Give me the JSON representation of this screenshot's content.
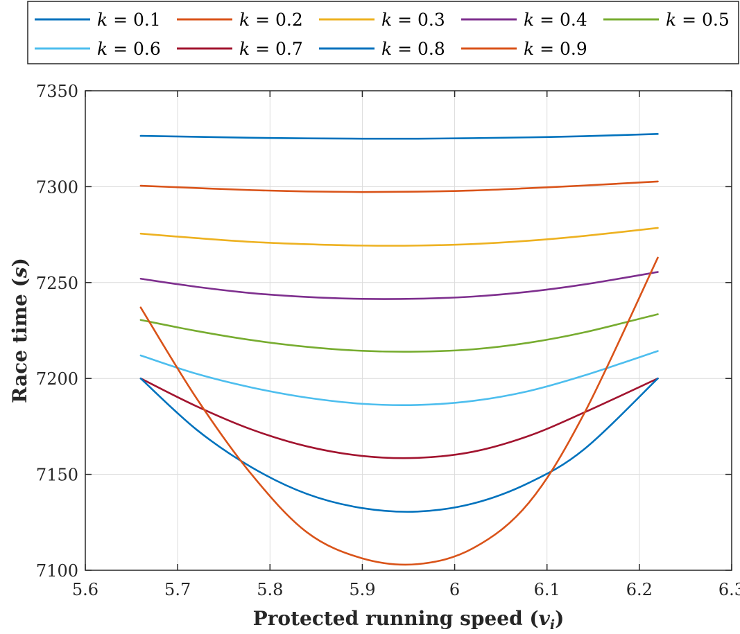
{
  "chart_data": {
    "type": "line",
    "title": "",
    "xlabel_parts": {
      "text": "Protected running speed (",
      "var": "v",
      "sub": "i",
      "close": ")"
    },
    "ylabel_parts": {
      "text": "Race time (",
      "var": "s",
      "close": ")"
    },
    "xlim": [
      5.6,
      6.3
    ],
    "ylim": [
      7100,
      7350
    ],
    "xticks": [
      5.6,
      5.7,
      5.8,
      5.9,
      6,
      6.1,
      6.2,
      6.3
    ],
    "xtick_labels": [
      "5.6",
      "5.7",
      "5.8",
      "5.9",
      "6",
      "6.1",
      "6.2",
      "6.3"
    ],
    "yticks": [
      7100,
      7150,
      7200,
      7250,
      7300,
      7350
    ],
    "ytick_labels": [
      "7100",
      "7150",
      "7200",
      "7250",
      "7300",
      "7350"
    ],
    "grid": true,
    "legend_position": "top",
    "x": [
      5.66,
      5.72,
      5.78,
      5.84,
      5.9,
      5.96,
      6.02,
      6.08,
      6.14,
      6.22
    ],
    "series": [
      {
        "name": "0.1",
        "color": "#0072BD",
        "values": [
          7326.5,
          7326,
          7325.5,
          7325.2,
          7325,
          7325,
          7325.3,
          7325.7,
          7326.3,
          7327.5
        ]
      },
      {
        "name": "0.2",
        "color": "#D95319",
        "values": [
          7300.5,
          7299.3,
          7298.2,
          7297.5,
          7297.2,
          7297.4,
          7298,
          7299.2,
          7300.6,
          7302.7
        ]
      },
      {
        "name": "0.3",
        "color": "#EDB120",
        "values": [
          7275.5,
          7273.2,
          7271.2,
          7270,
          7269.3,
          7269.3,
          7270.1,
          7271.8,
          7274.3,
          7278.5
        ]
      },
      {
        "name": "0.4",
        "color": "#7E2F8E",
        "values": [
          7252,
          7247.8,
          7244.5,
          7242.5,
          7241.5,
          7241.6,
          7242.7,
          7245.2,
          7249,
          7255.5
        ]
      },
      {
        "name": "0.5",
        "color": "#77AC30",
        "values": [
          7230.5,
          7224.8,
          7220,
          7216.5,
          7214.4,
          7214,
          7215.2,
          7218.6,
          7224,
          7233.5
        ]
      },
      {
        "name": "0.6",
        "color": "#4DBEEE",
        "values": [
          7212,
          7202.5,
          7195.3,
          7190,
          7186.8,
          7186.2,
          7188.3,
          7193.4,
          7201.5,
          7214.3
        ]
      },
      {
        "name": "0.7",
        "color": "#A2142F",
        "values": [
          7200,
          7185.6,
          7173.4,
          7164.6,
          7159.6,
          7158.6,
          7161.8,
          7170,
          7182.2,
          7200
        ]
      },
      {
        "name": "0.8",
        "color": "#0072BD",
        "values": [
          7200,
          7173.5,
          7153.7,
          7139.8,
          7132.4,
          7130.6,
          7134.8,
          7145.5,
          7163,
          7200
        ]
      },
      {
        "name": "0.9",
        "color": "#D95319",
        "values": [
          7237,
          7190,
          7150,
          7119.8,
          7106.2,
          7103.2,
          7111.5,
          7135,
          7181.5,
          7263
        ]
      }
    ]
  },
  "legend": {
    "prefix": "k",
    "eq": " = "
  }
}
